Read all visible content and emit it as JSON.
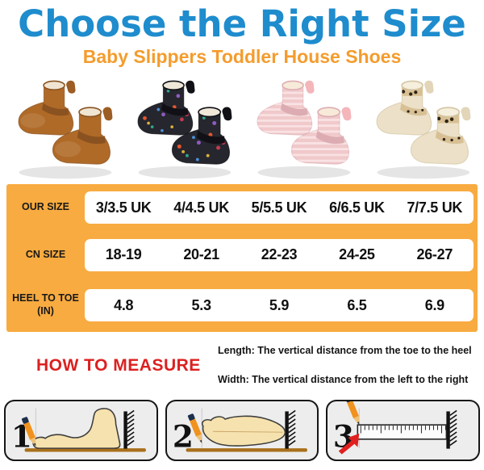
{
  "header": {
    "title": "Choose the Right Size",
    "subtitle": "Baby Slippers Toddler House Shoes"
  },
  "products": [
    {
      "name": "brown-fleece-booties",
      "pattern": "plain",
      "base": "#b06a28",
      "dark": "#8a5220",
      "lining": "#efe5d2",
      "loop": "#9c5e24"
    },
    {
      "name": "black-dinosaur-print-booties",
      "pattern": "dino",
      "base": "#26262e",
      "dark": "#101016",
      "lining": "#efe8d8",
      "loop": "#101016",
      "dots": [
        "#e4572e",
        "#2ea88a",
        "#8e5bc0",
        "#d9b23a",
        "#c23b4e",
        "#4a90d9"
      ]
    },
    {
      "name": "pink-plush-booties",
      "pattern": "stripes",
      "base": "#f0c9cb",
      "dark": "#dcacb2",
      "lining": "#f7ead9",
      "loop": "#f4b6ba",
      "stripe": "#f9e2e3"
    },
    {
      "name": "cream-leopard-booties",
      "pattern": "leopard",
      "base": "#ece1c8",
      "dark": "#d3c5a2",
      "lining": "#f6efdd",
      "loop": "#e2d5b8",
      "band": "#d8c094",
      "spot": "#2e2417"
    }
  ],
  "size_table": {
    "rows": [
      {
        "label": "OUR SIZE",
        "values": [
          "3/3.5 UK",
          "4/4.5 UK",
          "5/5.5 UK",
          "6/6.5 UK",
          "7/7.5 UK"
        ]
      },
      {
        "label": "CN SIZE",
        "values": [
          "18-19",
          "20-21",
          "22-23",
          "24-25",
          "26-27"
        ]
      },
      {
        "label": "HEEL TO TOE (IN)",
        "values": [
          "4.8",
          "5.3",
          "5.9",
          "6.5",
          "6.9"
        ]
      }
    ]
  },
  "measure": {
    "heading": "HOW TO MEASURE",
    "notes": [
      "Length: The vertical distance from the toe to the heel",
      "Width: The vertical distance from the left to the right"
    ],
    "steps": [
      "1",
      "2",
      "3"
    ]
  },
  "colors": {
    "title_blue": "#1e8ccd",
    "subtitle_orange": "#f49c2d",
    "table_orange": "#f8ab40",
    "heading_red": "#dc2020",
    "panel_bg": "#ededed",
    "floor_brown": "#a9701c",
    "skin": "#f6e2ae",
    "pencil_orange": "#f0921d",
    "pencil_navy": "#1d2f4a",
    "arrow_red": "#e02020"
  }
}
